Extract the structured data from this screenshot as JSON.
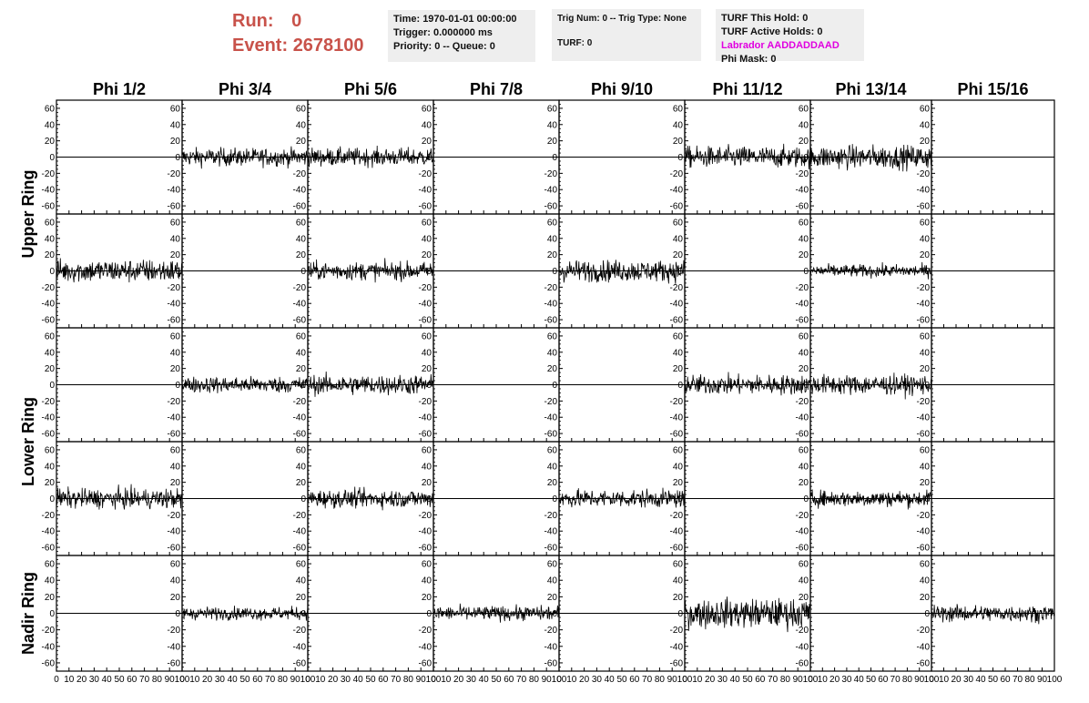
{
  "header": {
    "run_label": "Run:",
    "run_value": "0",
    "event_label": "Event:",
    "event_value": "2678100",
    "time_line": "Time: 1970-01-01 00:00:00",
    "trigger_line": "Trigger: 0.000000 ms",
    "priority_line": "Priority: 0 -- Queue: 0",
    "trig_line": "Trig Num: 0 -- Trig Type: None",
    "turf_line": "TURF: 0",
    "turf_hold_line": "TURF This Hold: 0",
    "turf_active_line": "TURF Active Holds: 0",
    "labrador_line": "Labrador AADDADDAAD",
    "phi_mask_line": "Phi Mask: 0",
    "labrador_color": "#e000e0",
    "title_color": "#c8524a"
  },
  "chart_data": {
    "type": "line",
    "columns": [
      "Phi 1/2",
      "Phi 3/4",
      "Phi 5/6",
      "Phi 7/8",
      "Phi 9/10",
      "Phi 11/12",
      "Phi 13/14",
      "Phi 15/16"
    ],
    "row_groups": [
      {
        "label": "Upper Ring",
        "rows": [
          0,
          1
        ]
      },
      {
        "label": "Lower Ring",
        "rows": [
          2,
          3
        ]
      },
      {
        "label": "Nadir Ring",
        "rows": [
          4
        ]
      }
    ],
    "xlim": [
      0,
      100
    ],
    "ylim": [
      -70,
      70
    ],
    "y_ticks": [
      -60,
      -40,
      -20,
      0,
      20,
      40,
      60
    ],
    "x_ticks": [
      0,
      10,
      20,
      30,
      40,
      50,
      60,
      70,
      80,
      90,
      100
    ],
    "samples_per_trace": 260,
    "grid": false,
    "trace_amplitude_rms": [
      [
        0,
        10,
        10,
        0,
        0,
        12,
        13,
        0
      ],
      [
        13,
        0,
        10,
        0,
        12,
        0,
        7,
        0
      ],
      [
        0,
        9,
        11,
        0,
        0,
        11,
        11,
        0
      ],
      [
        11,
        0,
        10,
        0,
        10,
        0,
        9,
        0
      ],
      [
        0,
        7,
        0,
        8,
        0,
        16,
        0,
        9
      ]
    ]
  }
}
